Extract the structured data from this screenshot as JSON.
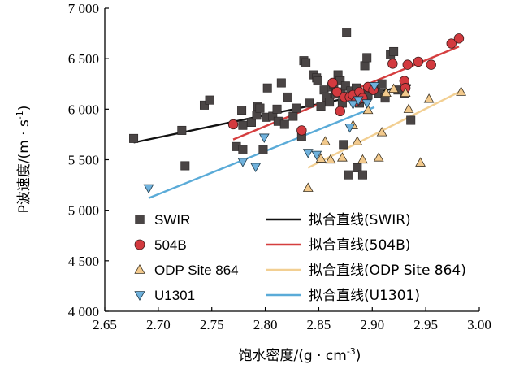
{
  "chart_data": {
    "type": "scatter",
    "xlabel_main": "饱水密度/(g · cm",
    "xlabel_sup": "-3",
    "xlabel_end": ")",
    "ylabel_main": "P波速度/(m · s",
    "ylabel_sup": "-1",
    "ylabel_end": ")",
    "xlim": [
      2.65,
      3.0
    ],
    "ylim": [
      4000,
      7000
    ],
    "x_ticks": [
      "2.65",
      "2.70",
      "2.75",
      "2.80",
      "2.85",
      "2.90",
      "2.95",
      "3.00"
    ],
    "y_ticks": [
      "4 000",
      "4 500",
      "5 000",
      "5 500",
      "6 000",
      "6 500",
      "7 000"
    ],
    "series": [
      {
        "name": "SWIR",
        "marker": "square",
        "color": "#4a4545",
        "points": [
          [
            2.677,
            5710
          ],
          [
            2.722,
            5790
          ],
          [
            2.725,
            5440
          ],
          [
            2.743,
            6040
          ],
          [
            2.748,
            6090
          ],
          [
            2.773,
            5630
          ],
          [
            2.778,
            5990
          ],
          [
            2.779,
            5840
          ],
          [
            2.779,
            5600
          ],
          [
            2.787,
            5870
          ],
          [
            2.792,
            5940
          ],
          [
            2.793,
            6030
          ],
          [
            2.795,
            6010
          ],
          [
            2.798,
            5600
          ],
          [
            2.801,
            5920
          ],
          [
            2.802,
            6210
          ],
          [
            2.807,
            5930
          ],
          [
            2.811,
            6000
          ],
          [
            2.812,
            5880
          ],
          [
            2.815,
            6260
          ],
          [
            2.818,
            5850
          ],
          [
            2.821,
            6120
          ],
          [
            2.826,
            5930
          ],
          [
            2.829,
            6010
          ],
          [
            2.834,
            5730
          ],
          [
            2.836,
            6480
          ],
          [
            2.838,
            6460
          ],
          [
            2.841,
            6060
          ],
          [
            2.845,
            6340
          ],
          [
            2.848,
            6310
          ],
          [
            2.849,
            6280
          ],
          [
            2.852,
            6030
          ],
          [
            2.855,
            6190
          ],
          [
            2.857,
            6120
          ],
          [
            2.86,
            6070
          ],
          [
            2.862,
            6220
          ],
          [
            2.864,
            6250
          ],
          [
            2.866,
            6150
          ],
          [
            2.868,
            6340
          ],
          [
            2.87,
            6280
          ],
          [
            2.871,
            6170
          ],
          [
            2.872,
            6060
          ],
          [
            2.873,
            5650
          ],
          [
            2.875,
            6230
          ],
          [
            2.876,
            6760
          ],
          [
            2.878,
            5350
          ],
          [
            2.88,
            6180
          ],
          [
            2.882,
            6110
          ],
          [
            2.885,
            6210
          ],
          [
            2.886,
            5420
          ],
          [
            2.888,
            6060
          ],
          [
            2.891,
            5350
          ],
          [
            2.893,
            6430
          ],
          [
            2.895,
            6510
          ],
          [
            2.896,
            6140
          ],
          [
            2.9,
            6210
          ],
          [
            2.903,
            6220
          ],
          [
            2.906,
            6160
          ],
          [
            2.909,
            6250
          ],
          [
            2.912,
            6110
          ],
          [
            2.917,
            6540
          ],
          [
            2.92,
            6570
          ],
          [
            2.924,
            6190
          ],
          [
            2.936,
            5890
          ],
          [
            2.93,
            6160
          ]
        ]
      },
      {
        "name": "504B",
        "marker": "circle",
        "color": "#d33a3f",
        "points": [
          [
            2.77,
            5850
          ],
          [
            2.834,
            5790
          ],
          [
            2.863,
            6260
          ],
          [
            2.867,
            6170
          ],
          [
            2.87,
            5980
          ],
          [
            2.874,
            6120
          ],
          [
            2.879,
            6120
          ],
          [
            2.882,
            6140
          ],
          [
            2.885,
            6080
          ],
          [
            2.888,
            6170
          ],
          [
            2.891,
            6110
          ],
          [
            2.896,
            6220
          ],
          [
            2.901,
            6190
          ],
          [
            2.919,
            6450
          ],
          [
            2.93,
            6280
          ],
          [
            2.931,
            6210
          ],
          [
            2.933,
            6440
          ],
          [
            2.943,
            6470
          ],
          [
            2.955,
            6440
          ],
          [
            2.974,
            6650
          ],
          [
            2.981,
            6700
          ]
        ]
      },
      {
        "name": "ODP Site 864",
        "marker": "triangle-up",
        "color": "#f2c98c",
        "points": [
          [
            2.84,
            5220
          ],
          [
            2.852,
            5510
          ],
          [
            2.856,
            5680
          ],
          [
            2.861,
            5500
          ],
          [
            2.872,
            5520
          ],
          [
            2.882,
            5840
          ],
          [
            2.886,
            5680
          ],
          [
            2.891,
            5500
          ],
          [
            2.896,
            5990
          ],
          [
            2.906,
            5520
          ],
          [
            2.909,
            5770
          ],
          [
            2.913,
            6160
          ],
          [
            2.92,
            6200
          ],
          [
            2.931,
            6160
          ],
          [
            2.934,
            6000
          ],
          [
            2.945,
            5470
          ],
          [
            2.953,
            6100
          ],
          [
            2.983,
            6170
          ]
        ]
      },
      {
        "name": "U1301",
        "marker": "triangle-down",
        "color": "#6fb1dc",
        "points": [
          [
            2.691,
            5220
          ],
          [
            2.779,
            5480
          ],
          [
            2.791,
            5430
          ],
          [
            2.799,
            5720
          ],
          [
            2.84,
            5570
          ],
          [
            2.848,
            5550
          ],
          [
            2.879,
            5820
          ],
          [
            2.882,
            6050
          ],
          [
            2.887,
            6090
          ],
          [
            2.895,
            6060
          ],
          [
            2.902,
            6230
          ]
        ]
      }
    ],
    "fit_lines": [
      {
        "name": "拟合直线(SWIR)",
        "color": "#111111",
        "x": [
          2.677,
          2.936
        ],
        "y": [
          5670,
          6240
        ]
      },
      {
        "name": "拟合直线(504B)",
        "color": "#d53e3f",
        "x": [
          2.77,
          2.981
        ],
        "y": [
          5700,
          6620
        ]
      },
      {
        "name": "拟合直线(ODP Site 864)",
        "color": "#f2cf92",
        "x": [
          2.84,
          2.983
        ],
        "y": [
          5420,
          6180
        ]
      },
      {
        "name": "拟合直线(U1301)",
        "color": "#5aabd8",
        "x": [
          2.691,
          2.902
        ],
        "y": [
          5120,
          6020
        ]
      }
    ]
  }
}
